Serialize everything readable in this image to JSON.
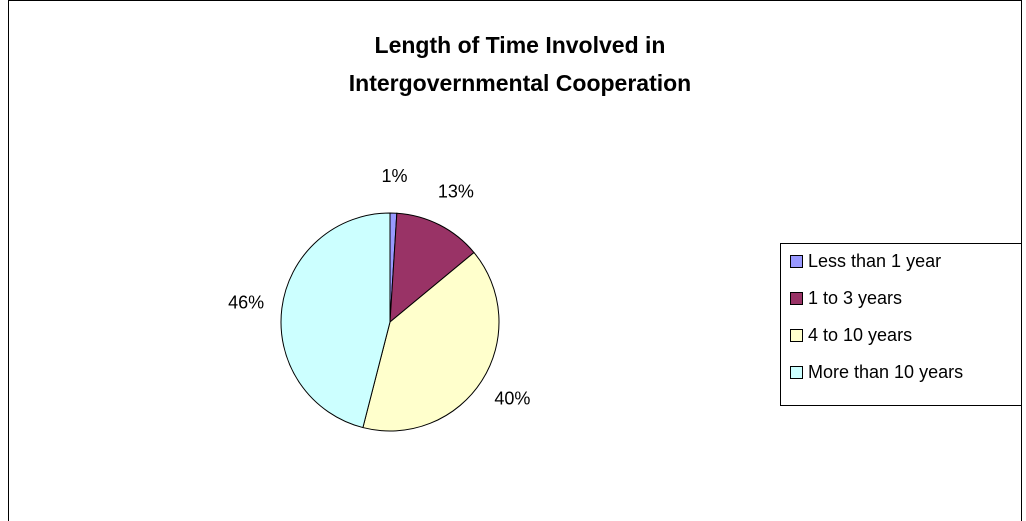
{
  "chart_data": {
    "type": "pie",
    "title": [
      "Length of Time Involved in",
      "Intergovernmental Cooperation"
    ],
    "categories": [
      "Less than 1 year",
      "1 to 3 years",
      "4 to 10 years",
      "More than 10 years"
    ],
    "values": [
      1,
      13,
      40,
      46
    ],
    "value_labels": [
      "1%",
      "13%",
      "40%",
      "46%"
    ],
    "colors": [
      "#9999ff",
      "#993366",
      "#ffffcc",
      "#ccffff"
    ],
    "legend": "right"
  }
}
